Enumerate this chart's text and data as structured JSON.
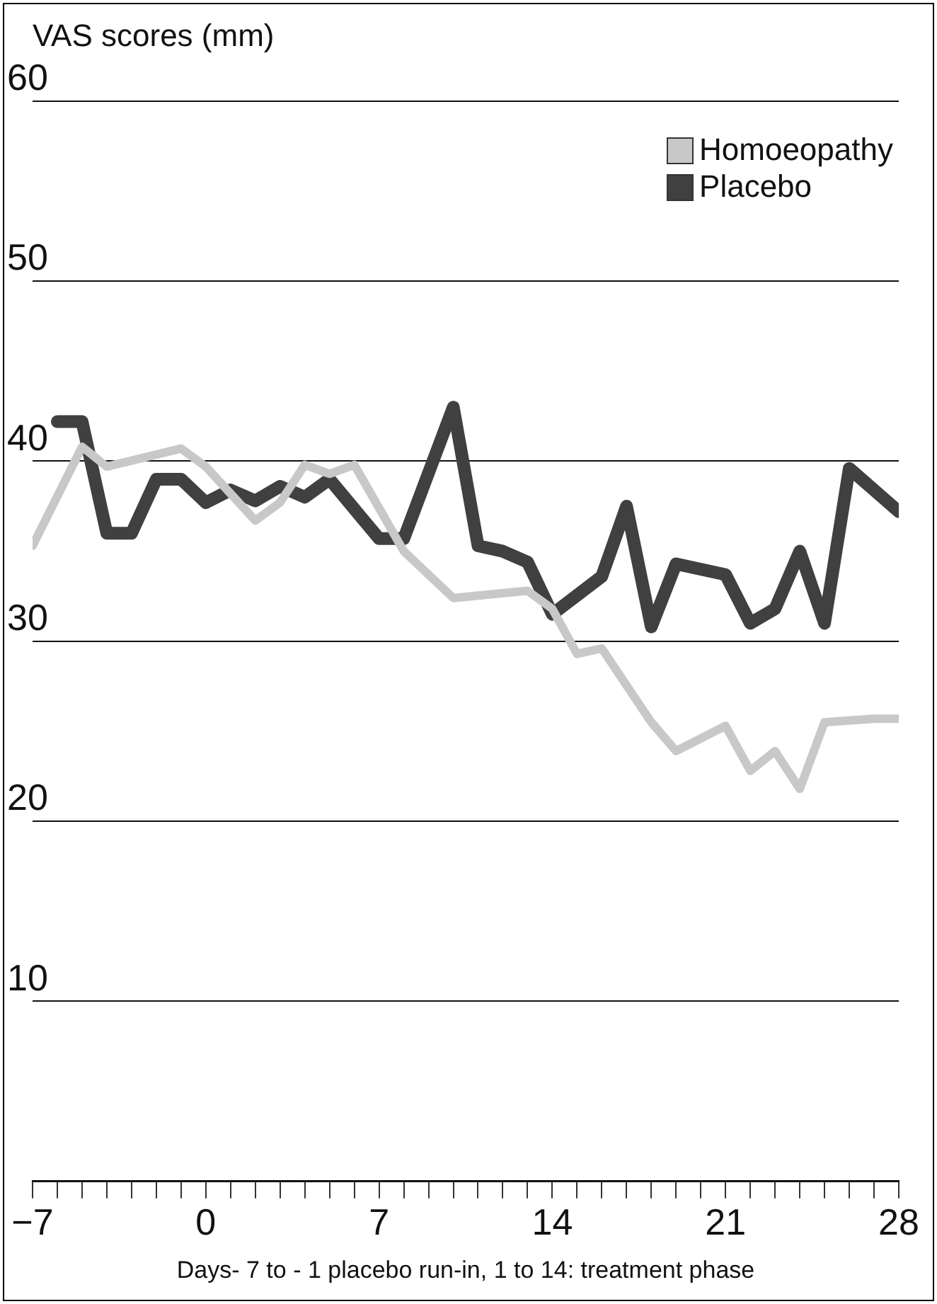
{
  "chart_data": {
    "type": "line",
    "ylabel": "VAS scores (mm)",
    "xlabel": "Days- 7 to - 1 placebo run-in, 1 to 14: treatment phase",
    "xlim": [
      -7,
      28
    ],
    "xticks": [
      -7,
      {
        "value": -6,
        "label": null
      },
      {
        "value": -5,
        "label": null
      },
      {
        "value": -4,
        "label": null
      },
      {
        "value": -3,
        "label": null
      },
      {
        "value": -2,
        "label": null
      },
      {
        "value": -1,
        "label": null
      },
      0,
      {
        "value": 1,
        "label": null
      },
      {
        "value": 2,
        "label": null
      },
      {
        "value": 3,
        "label": null
      },
      {
        "value": 4,
        "label": null
      },
      {
        "value": 5,
        "label": null
      },
      {
        "value": 6,
        "label": null
      },
      7,
      {
        "value": 8,
        "label": null
      },
      {
        "value": 9,
        "label": null
      },
      {
        "value": 10,
        "label": null
      },
      {
        "value": 11,
        "label": null
      },
      {
        "value": 12,
        "label": null
      },
      {
        "value": 13,
        "label": null
      },
      14,
      {
        "value": 15,
        "label": null
      },
      {
        "value": 16,
        "label": null
      },
      {
        "value": 17,
        "label": null
      },
      {
        "value": 18,
        "label": null
      },
      {
        "value": 19,
        "label": null
      },
      {
        "value": 20,
        "label": null
      },
      21,
      {
        "value": 22,
        "label": null
      },
      {
        "value": 23,
        "label": null
      },
      {
        "value": 24,
        "label": null
      },
      {
        "value": 25,
        "label": null
      },
      {
        "value": 26,
        "label": null
      },
      {
        "value": 27,
        "label": null
      },
      28
    ],
    "ylim": [
      0,
      60
    ],
    "yticks": [
      10,
      20,
      30,
      40,
      50,
      60
    ],
    "grid": "y",
    "legend": "top right",
    "marker": "none",
    "line_style": "solid",
    "series": [
      {
        "name": "Homoeopathy",
        "color": "#c8c8c8",
        "x": [
          -7,
          -5,
          -4,
          -1,
          0,
          2,
          3,
          4,
          5,
          6,
          8,
          10,
          13,
          14,
          15,
          16,
          18,
          19,
          21,
          22,
          23,
          24,
          25,
          27,
          28
        ],
        "values": [
          35.3,
          40.8,
          39.7,
          40.7,
          39.7,
          36.7,
          37.7,
          39.8,
          39.3,
          39.8,
          35,
          32.4,
          32.8,
          31.8,
          29.3,
          29.6,
          25.5,
          23.9,
          25.3,
          22.8,
          23.9,
          21.8,
          25.5,
          25.7,
          25.7
        ]
      },
      {
        "name": "Placebo",
        "color": "#404040",
        "x": [
          -6,
          -5,
          -4,
          -3,
          -2,
          -1,
          0,
          1,
          2,
          3,
          4,
          5,
          7,
          8,
          10,
          11,
          12,
          13,
          14,
          16,
          17,
          18,
          19,
          21,
          22,
          23,
          24,
          25,
          26,
          28
        ],
        "values": [
          42.2,
          42.2,
          36,
          36,
          39,
          39,
          37.7,
          38.4,
          37.8,
          38.6,
          38,
          39,
          35.7,
          35.7,
          43,
          35.3,
          35,
          34.4,
          31.5,
          33.6,
          37.5,
          30.8,
          34.3,
          33.7,
          31,
          31.8,
          35,
          31,
          39.6,
          37.2
        ]
      }
    ]
  }
}
